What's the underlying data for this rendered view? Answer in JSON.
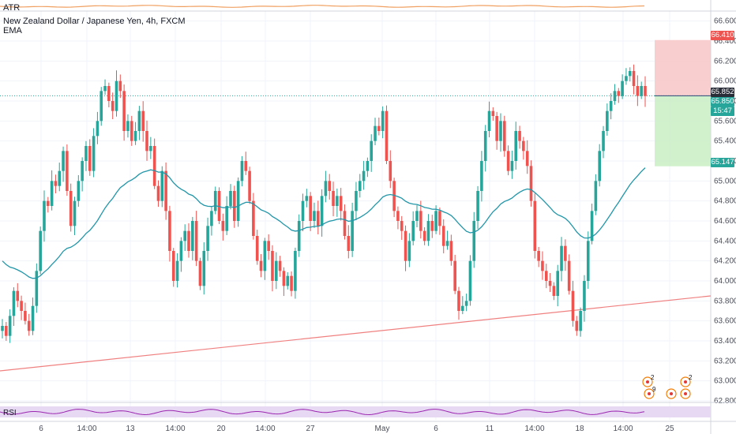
{
  "header": {
    "atr_label": "ATR",
    "symbol": "New Zealand Dollar / Japanese Yen, 4h, FXCM",
    "ema_label": "EMA",
    "rsi_label": "RSI"
  },
  "price_tags": {
    "stop": "66.410",
    "current": "65.852",
    "bid": "65.850",
    "countdown": "15:47",
    "target": "65.147"
  },
  "price_axis": {
    "ticks": [
      "66.600",
      "66.400",
      "66.200",
      "66.000",
      "65.800",
      "65.600",
      "65.400",
      "65.200",
      "65.000",
      "64.800",
      "64.600",
      "64.400",
      "64.200",
      "64.000",
      "63.800",
      "63.600",
      "63.400",
      "63.200",
      "63.000",
      "62.800"
    ]
  },
  "time_axis": {
    "ticks": [
      "6",
      "14:00",
      "13",
      "14:00",
      "20",
      "14:00",
      "27",
      "May",
      "6",
      "11",
      "14:00",
      "18",
      "14:00",
      "25"
    ]
  },
  "event_markers": [
    {
      "icon": "earnings-icon",
      "count": "2"
    },
    {
      "icon": "earnings-icon",
      "count": "2"
    },
    {
      "icon": "dividend-icon",
      "count": "9"
    }
  ],
  "colors": {
    "up": "#26a69a",
    "down": "#ef5350",
    "ema": "#2196a8",
    "trendline": "#f08080",
    "atr": "#f0a060",
    "rsi_line": "#9c27b0",
    "rsi_band": "#e7d8f3",
    "stop_zone": "#f8c6c6",
    "target_zone": "#c9efc4"
  },
  "chart_data": {
    "type": "candlestick",
    "title": "New Zealand Dollar / Japanese Yen, 4h, FXCM",
    "ylim": [
      62.8,
      66.7
    ],
    "x_range": [
      "Apr 1",
      "Jun 2"
    ],
    "grid": true,
    "position": {
      "entry": 65.852,
      "stop": 66.41,
      "target": 65.147
    },
    "trendline": {
      "from": [
        0,
        63.1
      ],
      "to": [
        1,
        63.85
      ]
    },
    "closes": [
      63.55,
      63.45,
      63.65,
      63.9,
      63.8,
      63.7,
      63.6,
      63.5,
      63.75,
      64.1,
      64.5,
      64.8,
      64.75,
      65.0,
      64.95,
      65.1,
      65.3,
      64.9,
      64.55,
      64.8,
      65.0,
      65.2,
      65.35,
      65.1,
      65.45,
      65.6,
      65.9,
      65.95,
      65.8,
      65.7,
      66.0,
      65.9,
      65.5,
      65.6,
      65.4,
      65.5,
      65.7,
      65.5,
      65.3,
      65.35,
      64.95,
      64.8,
      65.1,
      64.7,
      64.3,
      64.0,
      64.2,
      64.4,
      64.5,
      64.3,
      64.6,
      64.2,
      63.95,
      64.3,
      64.55,
      64.7,
      64.9,
      64.6,
      64.5,
      64.75,
      64.9,
      64.6,
      65.0,
      65.2,
      65.1,
      64.8,
      64.45,
      64.2,
      64.1,
      64.4,
      64.3,
      64.0,
      64.2,
      64.1,
      63.95,
      64.05,
      63.9,
      64.3,
      64.6,
      64.8,
      64.85,
      64.6,
      64.7,
      64.55,
      64.85,
      65.0,
      64.9,
      64.75,
      64.85,
      64.7,
      64.45,
      64.3,
      64.7,
      64.9,
      65.0,
      65.1,
      65.2,
      65.4,
      65.55,
      65.5,
      65.7,
      65.2,
      65.0,
      64.7,
      64.6,
      64.5,
      64.2,
      64.4,
      64.6,
      64.7,
      64.5,
      64.4,
      64.6,
      64.5,
      64.7,
      64.55,
      64.35,
      64.4,
      64.2,
      63.9,
      63.7,
      63.75,
      63.8,
      64.2,
      64.6,
      64.9,
      65.2,
      65.5,
      65.7,
      65.65,
      65.4,
      65.6,
      65.3,
      65.1,
      65.2,
      65.5,
      65.4,
      65.3,
      65.15,
      64.8,
      64.3,
      64.2,
      64.1,
      64.0,
      63.95,
      63.85,
      64.1,
      64.35,
      64.2,
      63.9,
      63.6,
      63.5,
      63.7,
      64.0,
      64.4,
      64.7,
      65.0,
      65.3,
      65.5,
      65.7,
      65.8,
      65.9,
      65.85,
      66.0,
      66.05,
      66.1,
      65.95,
      65.85,
      65.95,
      65.85
    ]
  }
}
